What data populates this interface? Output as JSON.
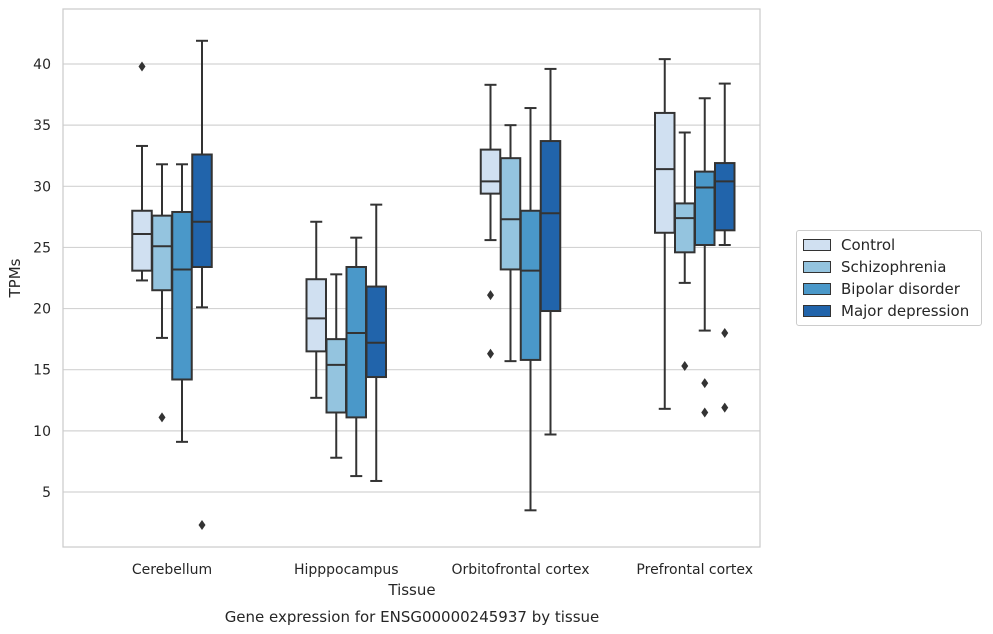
{
  "chart_data": {
    "type": "box",
    "xlabel": "Tissue",
    "ylabel": "TPMs",
    "caption": "Gene expression for ENSG00000245937 by tissue",
    "ylim": [
      0.5,
      44.5
    ],
    "yticks": [
      5,
      10,
      15,
      20,
      25,
      30,
      35,
      40
    ],
    "grid": true,
    "legend_position": "right",
    "categories": [
      "Cerebellum",
      "Hipppocampus",
      "Orbitofrontal cortex",
      "Prefrontal cortex"
    ],
    "series": [
      {
        "name": "Control",
        "color": "#d0e0f1",
        "boxes": [
          {
            "whisker_low": 22.3,
            "q1": 23.1,
            "median": 26.1,
            "q3": 28.0,
            "whisker_high": 33.3,
            "outliers": [
              39.8
            ]
          },
          {
            "whisker_low": 12.7,
            "q1": 16.5,
            "median": 19.2,
            "q3": 22.4,
            "whisker_high": 27.1,
            "outliers": []
          },
          {
            "whisker_low": 25.6,
            "q1": 29.4,
            "median": 30.4,
            "q3": 33.0,
            "whisker_high": 38.3,
            "outliers": [
              21.1,
              16.3
            ]
          },
          {
            "whisker_low": 11.8,
            "q1": 26.2,
            "median": 31.4,
            "q3": 36.0,
            "whisker_high": 40.4,
            "outliers": []
          }
        ]
      },
      {
        "name": "Schizophrenia",
        "color": "#94c4df",
        "boxes": [
          {
            "whisker_low": 17.6,
            "q1": 21.5,
            "median": 25.1,
            "q3": 27.6,
            "whisker_high": 31.8,
            "outliers": [
              11.1
            ]
          },
          {
            "whisker_low": 7.8,
            "q1": 11.5,
            "median": 15.4,
            "q3": 17.5,
            "whisker_high": 22.8,
            "outliers": []
          },
          {
            "whisker_low": 15.7,
            "q1": 23.2,
            "median": 27.3,
            "q3": 32.3,
            "whisker_high": 35.0,
            "outliers": []
          },
          {
            "whisker_low": 22.1,
            "q1": 24.6,
            "median": 27.4,
            "q3": 28.6,
            "whisker_high": 34.4,
            "outliers": [
              15.3
            ]
          }
        ]
      },
      {
        "name": "Bipolar disorder",
        "color": "#4a98c9",
        "boxes": [
          {
            "whisker_low": 9.1,
            "q1": 14.2,
            "median": 23.2,
            "q3": 27.9,
            "whisker_high": 31.8,
            "outliers": []
          },
          {
            "whisker_low": 6.3,
            "q1": 11.1,
            "median": 18.0,
            "q3": 23.4,
            "whisker_high": 25.8,
            "outliers": []
          },
          {
            "whisker_low": 3.5,
            "q1": 15.8,
            "median": 23.1,
            "q3": 28.0,
            "whisker_high": 36.4,
            "outliers": []
          },
          {
            "whisker_low": 18.2,
            "q1": 25.2,
            "median": 29.9,
            "q3": 31.2,
            "whisker_high": 37.2,
            "outliers": [
              13.9,
              11.5
            ]
          }
        ]
      },
      {
        "name": "Major depression",
        "color": "#2164ab",
        "boxes": [
          {
            "whisker_low": 20.1,
            "q1": 23.4,
            "median": 27.1,
            "q3": 32.6,
            "whisker_high": 41.9,
            "outliers": [
              2.3
            ]
          },
          {
            "whisker_low": 5.9,
            "q1": 14.4,
            "median": 17.2,
            "q3": 21.8,
            "whisker_high": 28.5,
            "outliers": []
          },
          {
            "whisker_low": 9.7,
            "q1": 19.8,
            "median": 27.8,
            "q3": 33.7,
            "whisker_high": 39.6,
            "outliers": []
          },
          {
            "whisker_low": 25.2,
            "q1": 26.4,
            "median": 30.4,
            "q3": 31.9,
            "whisker_high": 38.4,
            "outliers": [
              18.0,
              11.9
            ]
          }
        ]
      }
    ]
  }
}
